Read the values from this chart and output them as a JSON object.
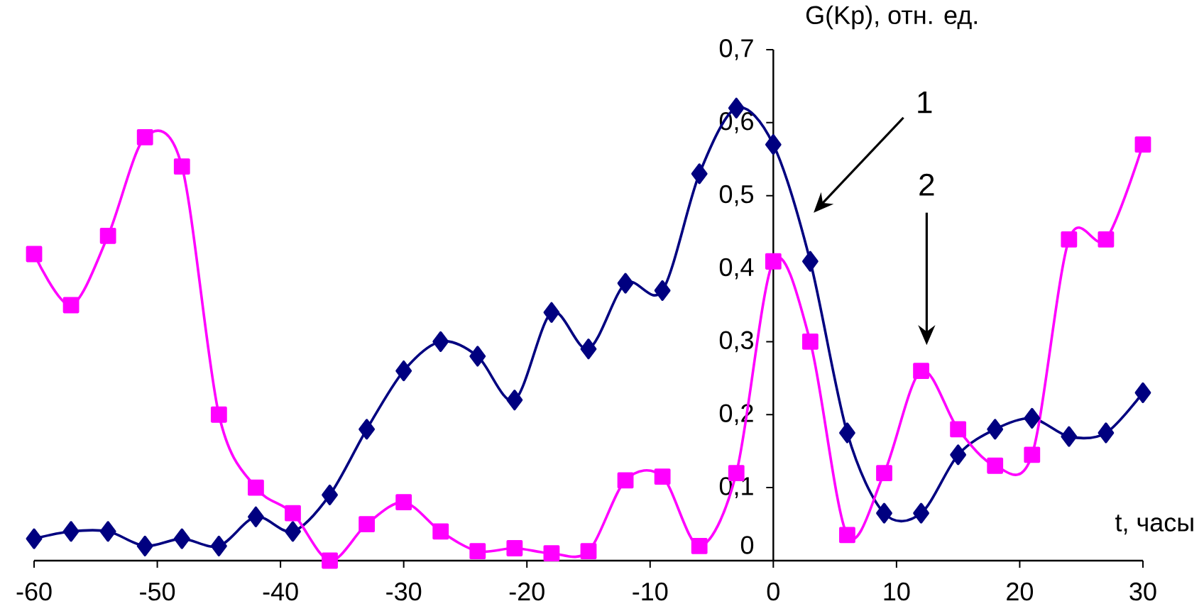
{
  "chart_data": {
    "type": "line",
    "xlabel": "t, часы",
    "ylabel": "G(Kp), отн. ед.",
    "x": [
      -60,
      -57,
      -54,
      -51,
      -48,
      -45,
      -42,
      -39,
      -36,
      -33,
      -30,
      -27,
      -24,
      -21,
      -18,
      -15,
      -12,
      -9,
      -6,
      -3,
      0,
      3,
      6,
      9,
      12,
      15,
      18,
      21,
      24,
      27,
      30
    ],
    "series": [
      {
        "color": "#000080",
        "marker": "diamond",
        "values": [
          0.03,
          0.04,
          0.04,
          0.02,
          0.03,
          0.02,
          0.06,
          0.04,
          0.09,
          0.18,
          0.26,
          0.3,
          0.28,
          0.22,
          0.34,
          0.29,
          0.38,
          0.37,
          0.53,
          0.62,
          0.57,
          0.41,
          0.175,
          0.065,
          0.065,
          0.145,
          0.18,
          0.195,
          0.17,
          0.175,
          0.23
        ]
      },
      {
        "color": "#ff00ff",
        "marker": "square",
        "values": [
          0.42,
          0.35,
          0.445,
          0.58,
          0.54,
          0.2,
          0.1,
          0.065,
          0.0,
          0.05,
          0.08,
          0.04,
          0.013,
          0.017,
          0.01,
          0.013,
          0.11,
          0.115,
          0.02,
          0.12,
          0.41,
          0.3,
          0.035,
          0.12,
          0.26,
          0.18,
          0.13,
          0.145,
          0.44,
          0.44,
          0.57
        ]
      }
    ],
    "xlim": [
      -60,
      30
    ],
    "ylim": [
      0,
      0.7
    ],
    "xticks": [
      -60,
      -50,
      -40,
      -30,
      -20,
      -10,
      0,
      10,
      20,
      30
    ],
    "yticks": [
      0,
      {
        "value": 0.1,
        "label": "0,1"
      },
      {
        "value": 0.2,
        "label": "0,2"
      },
      {
        "value": 0.3,
        "label": "0,3"
      },
      {
        "value": 0.4,
        "label": "0,4"
      },
      {
        "value": 0.5,
        "label": "0,5"
      },
      {
        "value": 0.6,
        "label": "0,6"
      },
      {
        "value": 0.7,
        "label": "0,7"
      }
    ],
    "annotations": [
      "1",
      "2"
    ],
    "grid": false
  }
}
